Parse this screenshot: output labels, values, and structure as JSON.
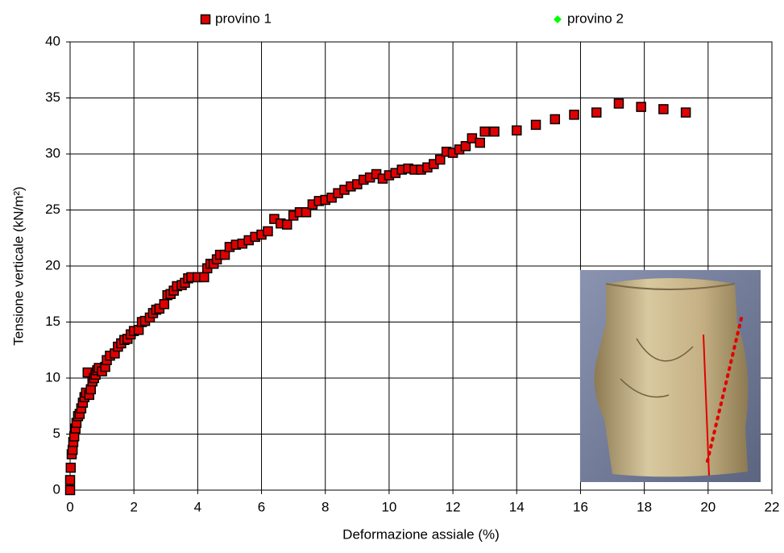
{
  "chart_data": {
    "type": "scatter",
    "xlabel": "Deformazione assiale (%)",
    "ylabel": "Tensione verticale (kN/m²)",
    "xlim": [
      0,
      22
    ],
    "xticks": [
      0,
      2,
      4,
      6,
      8,
      10,
      12,
      14,
      16,
      18,
      20,
      22
    ],
    "ylim": [
      0,
      40
    ],
    "yticks": [
      0,
      5,
      10,
      15,
      20,
      25,
      30,
      35,
      40
    ],
    "grid": true,
    "legend": "top",
    "series": [
      {
        "name": "provino 1",
        "color": "#e00000",
        "marker": "square",
        "x": [
          0,
          0,
          0.02,
          0.05,
          0.08,
          0.1,
          0.13,
          0.17,
          0.2,
          0.25,
          0.3,
          0.35,
          0.4,
          0.45,
          0.5,
          0.55,
          0.6,
          0.65,
          0.7,
          0.75,
          0.8,
          0.85,
          0.9,
          1.0,
          1.1,
          1.15,
          1.25,
          1.4,
          1.5,
          1.6,
          1.7,
          1.8,
          1.9,
          2.0,
          2.15,
          2.25,
          2.35,
          2.5,
          2.6,
          2.7,
          2.8,
          2.95,
          3.05,
          3.15,
          3.25,
          3.35,
          3.5,
          3.6,
          3.7,
          3.8,
          4.0,
          4.2,
          4.3,
          4.4,
          4.5,
          4.6,
          4.7,
          4.85,
          5.0,
          5.2,
          5.4,
          5.6,
          5.8,
          6.0,
          6.2,
          6.4,
          6.6,
          6.8,
          7.0,
          7.2,
          7.4,
          7.6,
          7.8,
          8.0,
          8.2,
          8.4,
          8.6,
          8.8,
          9.0,
          9.2,
          9.4,
          9.6,
          9.8,
          10.0,
          10.2,
          10.4,
          10.6,
          10.8,
          11.0,
          11.2,
          11.4,
          11.6,
          11.8,
          12.0,
          12.2,
          12.4,
          12.6,
          12.85,
          13.0,
          13.3,
          14.0,
          14.6,
          15.2,
          15.8,
          16.5,
          17.2,
          17.9,
          18.6,
          19.3
        ],
        "y": [
          0,
          0.9,
          2,
          3.2,
          3.6,
          4.3,
          4.8,
          5.5,
          6,
          6.6,
          6.8,
          7.3,
          7.8,
          8.3,
          8.7,
          10.5,
          8.5,
          9,
          9.7,
          10,
          10.3,
          10.7,
          10.9,
          10.6,
          11,
          11.6,
          12,
          12.2,
          12.8,
          13.1,
          13.4,
          13.5,
          13.9,
          14.2,
          14.3,
          15,
          15.1,
          15.4,
          15.8,
          16.1,
          16.2,
          16.6,
          17.4,
          17.5,
          17.8,
          18.2,
          18.3,
          18.5,
          18.9,
          19,
          19,
          19,
          19.8,
          20.2,
          20.2,
          20.6,
          21,
          21,
          21.7,
          21.9,
          22,
          22.3,
          22.6,
          22.8,
          23.1,
          24.2,
          23.8,
          23.7,
          24.5,
          24.8,
          24.8,
          25.5,
          25.8,
          25.9,
          26.1,
          26.5,
          26.8,
          27.1,
          27.3,
          27.7,
          27.9,
          28.2,
          27.8,
          28.1,
          28.3,
          28.6,
          28.7,
          28.6,
          28.6,
          28.8,
          29.1,
          29.5,
          30.2,
          30.1,
          30.4,
          30.7,
          31.4,
          31,
          32,
          32,
          32.1,
          32.6,
          33.1,
          33.5,
          33.7,
          34.5,
          34.2,
          34,
          33.7
        ]
      },
      {
        "name": "provino 2",
        "color": "#00ff00",
        "marker": "diamond",
        "x": [],
        "y": []
      }
    ]
  }
}
